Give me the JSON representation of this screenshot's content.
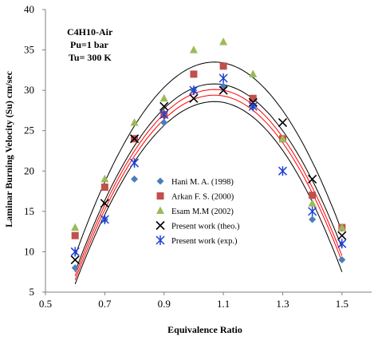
{
  "chart_data": {
    "type": "scatter",
    "title": "",
    "xlabel": "Equivalence Ratio",
    "ylabel": "Laminar Burning Velocity (Su) cm/sec",
    "xlim": [
      0.5,
      1.6
    ],
    "ylim": [
      5,
      40
    ],
    "x_ticks": [
      "0.5",
      "0.7",
      "0.9",
      "1.1",
      "1.3",
      "1.5"
    ],
    "y_ticks": [
      "5",
      "10",
      "15",
      "20",
      "25",
      "30",
      "35",
      "40"
    ],
    "grid": false,
    "legend_position": "lower-left",
    "annotations": [
      "C4H10-Air",
      "Pu=1 bar",
      "Tu= 300 K"
    ],
    "series": [
      {
        "name": "Hani M. A. (1998)",
        "marker": "diamond",
        "color": "#4a7ebb",
        "points": [
          [
            0.6,
            8
          ],
          [
            0.7,
            14
          ],
          [
            0.8,
            19
          ],
          [
            0.9,
            26
          ],
          [
            1.0,
            30
          ],
          [
            1.1,
            30.5
          ],
          [
            1.2,
            28
          ],
          [
            1.3,
            24
          ],
          [
            1.4,
            14
          ],
          [
            1.5,
            9
          ]
        ]
      },
      {
        "name": "Arkan F. S. (2000)",
        "marker": "square",
        "color": "#c0504d",
        "points": [
          [
            0.6,
            12
          ],
          [
            0.7,
            18
          ],
          [
            0.8,
            24
          ],
          [
            0.9,
            27
          ],
          [
            1.0,
            32
          ],
          [
            1.1,
            33
          ],
          [
            1.2,
            29
          ],
          [
            1.3,
            24
          ],
          [
            1.4,
            17
          ],
          [
            1.5,
            13
          ]
        ]
      },
      {
        "name": "Esam M.M (2002)",
        "marker": "triangle",
        "color": "#9bbb59",
        "points": [
          [
            0.6,
            13
          ],
          [
            0.7,
            19
          ],
          [
            0.8,
            26
          ],
          [
            0.9,
            29
          ],
          [
            1.0,
            35
          ],
          [
            1.1,
            36
          ],
          [
            1.2,
            32
          ],
          [
            1.3,
            24
          ],
          [
            1.4,
            16
          ],
          [
            1.5,
            13
          ]
        ]
      },
      {
        "name": "Present work (theo.)",
        "marker": "x",
        "color": "#000000",
        "points": [
          [
            0.6,
            9
          ],
          [
            0.7,
            16
          ],
          [
            0.8,
            24
          ],
          [
            0.9,
            28
          ],
          [
            1.0,
            29
          ],
          [
            1.1,
            30
          ],
          [
            1.2,
            28.5
          ],
          [
            1.3,
            26
          ],
          [
            1.4,
            19
          ],
          [
            1.5,
            12
          ]
        ]
      },
      {
        "name": "Present work (exp.)",
        "marker": "asterisk",
        "color": "#1f3fd6",
        "points": [
          [
            0.6,
            10
          ],
          [
            0.7,
            14
          ],
          [
            0.8,
            21
          ],
          [
            0.9,
            27
          ],
          [
            1.0,
            30
          ],
          [
            1.1,
            31.5
          ],
          [
            1.2,
            28
          ],
          [
            1.3,
            20
          ],
          [
            1.4,
            15
          ],
          [
            1.5,
            11
          ]
        ]
      }
    ],
    "fit_curves": [
      {
        "color": "#000000",
        "peak_x": 1.07,
        "peak_y": 33.5,
        "x_range": [
          0.6,
          1.5
        ],
        "y_at_ends": [
          9.5,
          12.5
        ]
      },
      {
        "color": "#000000",
        "peak_x": 1.07,
        "peak_y": 30.8,
        "x_range": [
          0.6,
          1.5
        ],
        "y_at_ends": [
          7.5,
          10.5
        ]
      },
      {
        "color": "#ff0000",
        "peak_x": 1.07,
        "peak_y": 30.1,
        "x_range": [
          0.6,
          1.5
        ],
        "y_at_ends": [
          7.0,
          9.5
        ]
      },
      {
        "color": "#ff0000",
        "peak_x": 1.07,
        "peak_y": 29.4,
        "x_range": [
          0.6,
          1.5
        ],
        "y_at_ends": [
          6.5,
          8.8
        ]
      },
      {
        "color": "#000000",
        "peak_x": 1.07,
        "peak_y": 28.6,
        "x_range": [
          0.6,
          1.5
        ],
        "y_at_ends": [
          6.0,
          7.5
        ]
      }
    ]
  }
}
